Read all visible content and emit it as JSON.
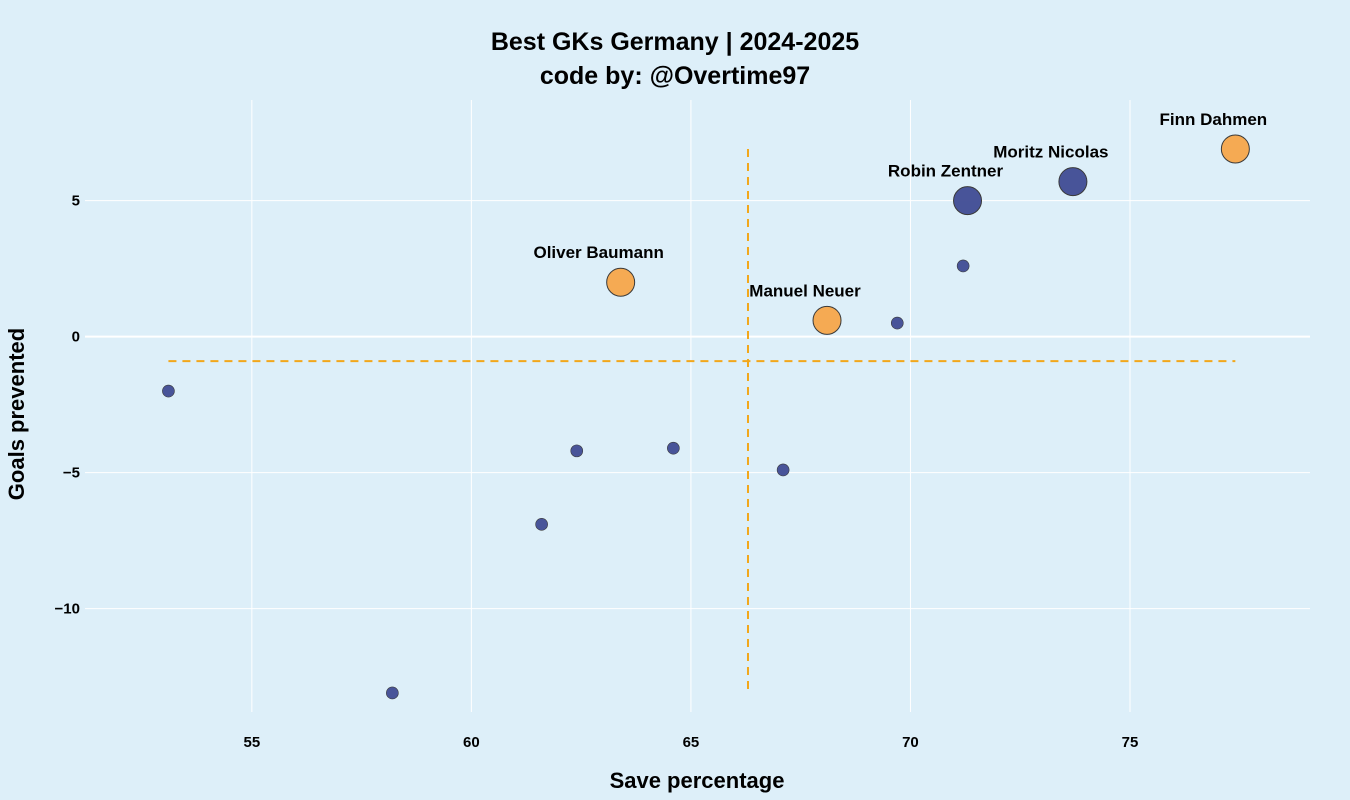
{
  "chart_data": {
    "type": "scatter",
    "title": "Best GKs Germany | 2024-2025",
    "subtitle": "code by: @Overtime97",
    "xlabel": "Save percentage",
    "ylabel": "Goals prevented",
    "xlim": [
      51.2,
      79.1
    ],
    "ylim": [
      -13.8,
      8.7
    ],
    "xticks": [
      55,
      60,
      65,
      70,
      75
    ],
    "yticks": [
      -10,
      -5,
      0,
      5
    ],
    "ytick_labels": [
      "−10",
      "−5",
      "0",
      "5"
    ],
    "grid": true,
    "reference_lines": {
      "vertical_x": 66.3,
      "vertical_y_range": [
        -13.1,
        6.9
      ],
      "horizontal_y": -0.9,
      "horizontal_x_range": [
        53.1,
        77.4
      ]
    },
    "colors": {
      "background": "#ddeff9",
      "grid": "#ffffff",
      "highlight": "#f5a54a",
      "default": "#3f4b94",
      "reference_line": "#f2a71b"
    },
    "points": [
      {
        "x": 77.4,
        "y": 6.9,
        "label": "Finn Dahmen",
        "group": "highlight",
        "size": "large"
      },
      {
        "x": 73.7,
        "y": 5.7,
        "label": "Moritz Nicolas",
        "group": "default",
        "size": "large"
      },
      {
        "x": 71.3,
        "y": 5.0,
        "label": "Robin Zentner",
        "group": "default",
        "size": "large"
      },
      {
        "x": 63.4,
        "y": 2.0,
        "label": "Oliver Baumann",
        "group": "highlight",
        "size": "large"
      },
      {
        "x": 68.1,
        "y": 0.6,
        "label": "Manuel Neuer",
        "group": "highlight",
        "size": "large"
      },
      {
        "x": 71.2,
        "y": 2.6,
        "label": "",
        "group": "default",
        "size": "small"
      },
      {
        "x": 69.7,
        "y": 0.5,
        "label": "",
        "group": "default",
        "size": "small"
      },
      {
        "x": 53.1,
        "y": -2.0,
        "label": "",
        "group": "default",
        "size": "small"
      },
      {
        "x": 62.4,
        "y": -4.2,
        "label": "",
        "group": "default",
        "size": "small"
      },
      {
        "x": 64.6,
        "y": -4.1,
        "label": "",
        "group": "default",
        "size": "small"
      },
      {
        "x": 67.1,
        "y": -4.9,
        "label": "",
        "group": "default",
        "size": "small"
      },
      {
        "x": 61.6,
        "y": -6.9,
        "label": "",
        "group": "default",
        "size": "small"
      },
      {
        "x": 58.2,
        "y": -13.1,
        "label": "",
        "group": "default",
        "size": "small"
      }
    ]
  }
}
